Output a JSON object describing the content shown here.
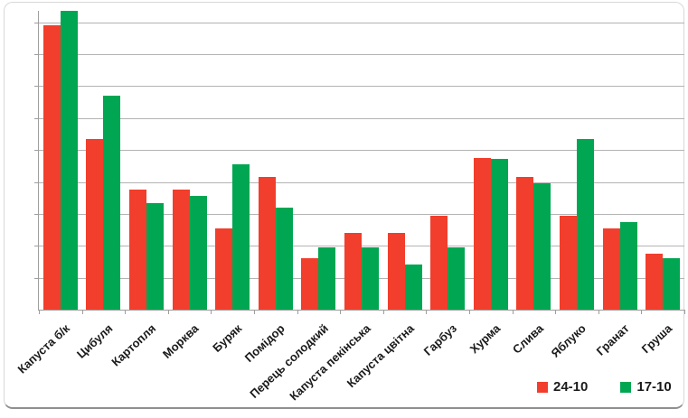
{
  "chart_data": {
    "type": "bar",
    "title": "",
    "xlabel": "",
    "ylabel": "",
    "categories": [
      "Капуста б/к",
      "Цибуля",
      "Картопля",
      "Морква",
      "Буряк",
      "Помідор",
      "Перець солодкий",
      "Капуста пекінська",
      "Капуста цвітна",
      "Гарбуз",
      "Хурма",
      "Слива",
      "Яблуко",
      "Гранат",
      "Груша"
    ],
    "series": [
      {
        "name": "24-10",
        "color": "#f23e2c",
        "values": [
          8.9,
          5.35,
          3.75,
          3.75,
          2.55,
          4.15,
          1.6,
          2.4,
          2.4,
          2.95,
          4.75,
          4.15,
          2.95,
          2.55,
          1.75
        ]
      },
      {
        "name": "17-10",
        "color": "#00a651",
        "values": [
          9.35,
          6.7,
          3.35,
          3.55,
          4.55,
          3.2,
          1.95,
          1.95,
          1.4,
          1.95,
          4.72,
          3.95,
          5.35,
          2.75,
          1.6
        ]
      }
    ],
    "ylim": [
      0,
      9.35
    ],
    "y_axis_labels_visible": false,
    "gridlines": {
      "horizontal": true,
      "count": 9,
      "step": 1
    },
    "legend_position": "bottom-right"
  },
  "colors": {
    "background": "#ffffff",
    "grid": "#b3b3b3",
    "axis": "#9e9e9e",
    "text": "#1a1a1a",
    "frame_border": "#d8d8d8",
    "frame_border_bottom": "#8f8f8f"
  }
}
